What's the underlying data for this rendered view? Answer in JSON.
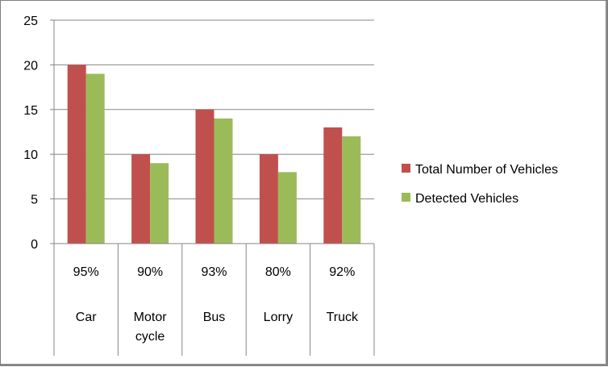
{
  "chart_data": {
    "type": "bar",
    "categories": [
      {
        "label_lines": [
          "Car"
        ],
        "percent": "95%"
      },
      {
        "label_lines": [
          "Motor",
          "cycle"
        ],
        "percent": "90%"
      },
      {
        "label_lines": [
          "Bus"
        ],
        "percent": "93%"
      },
      {
        "label_lines": [
          "Lorry"
        ],
        "percent": "80%"
      },
      {
        "label_lines": [
          "Truck"
        ],
        "percent": "92%"
      }
    ],
    "series": [
      {
        "name": "Total Number of Vehicles",
        "color": "#c0504d",
        "values": [
          20,
          10,
          15,
          10,
          13
        ]
      },
      {
        "name": "Detected Vehicles",
        "color": "#9bbb59",
        "values": [
          19,
          9,
          14,
          8,
          12
        ]
      }
    ],
    "y_ticks": [
      "0",
      "5",
      "10",
      "15",
      "20",
      "25"
    ],
    "ylim": [
      0,
      25
    ],
    "grid": true,
    "legend_position": "right"
  }
}
